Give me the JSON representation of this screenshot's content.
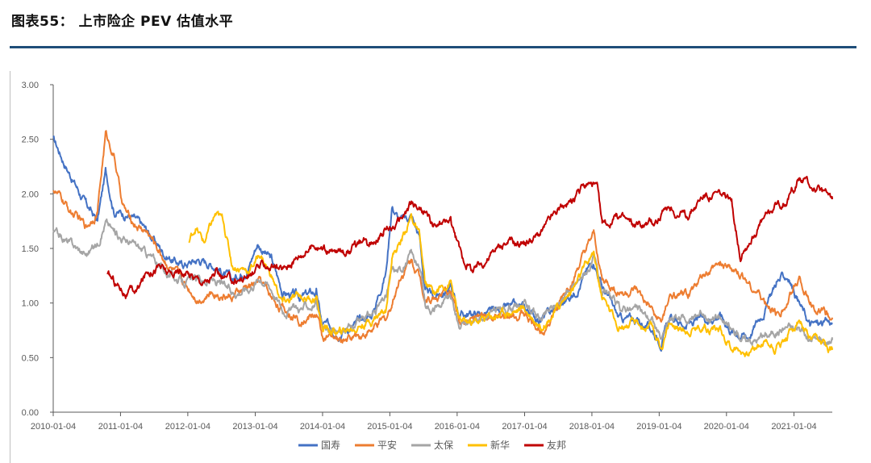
{
  "figure_title": "图表55： 上市险企 PEV 估值水平",
  "colors": {
    "rule": "#1f4e79",
    "国寿": "#4472c4",
    "平安": "#ed7d31",
    "太保": "#a5a5a5",
    "新华": "#ffc000",
    "友邦": "#c00000"
  },
  "chart_data": {
    "type": "line",
    "title": "",
    "xlabel": "",
    "ylabel": "",
    "ylim": [
      0,
      3
    ],
    "yticks": [
      "0.00",
      "0.50",
      "1.00",
      "1.50",
      "2.00",
      "2.50",
      "3.00"
    ],
    "xticks": [
      "2010-01-04",
      "2011-01-04",
      "2012-01-04",
      "2013-01-04",
      "2014-01-04",
      "2015-01-04",
      "2016-01-04",
      "2017-01-04",
      "2018-01-04",
      "2019-01-04",
      "2020-01-04",
      "2021-01-04"
    ],
    "xrange": [
      "2010-01-04",
      "2021-07-31"
    ],
    "grid": false,
    "legend": "bottom",
    "series": [
      {
        "name": "国寿",
        "points": [
          [
            "2010-01-04",
            2.5
          ],
          [
            "2010-04-01",
            2.2
          ],
          [
            "2010-07-01",
            1.9
          ],
          [
            "2010-09-01",
            1.75
          ],
          [
            "2010-10-15",
            2.2
          ],
          [
            "2010-12-01",
            1.85
          ],
          [
            "2011-03-01",
            1.8
          ],
          [
            "2011-06-01",
            1.65
          ],
          [
            "2011-09-01",
            1.45
          ],
          [
            "2011-12-01",
            1.35
          ],
          [
            "2012-03-01",
            1.4
          ],
          [
            "2012-06-01",
            1.35
          ],
          [
            "2012-09-01",
            1.2
          ],
          [
            "2012-12-01",
            1.35
          ],
          [
            "2013-01-15",
            1.55
          ],
          [
            "2013-04-01",
            1.4
          ],
          [
            "2013-06-01",
            1.1
          ],
          [
            "2013-09-01",
            1.05
          ],
          [
            "2013-12-01",
            1.1
          ],
          [
            "2014-01-01",
            0.8
          ],
          [
            "2014-04-01",
            0.75
          ],
          [
            "2014-07-01",
            0.8
          ],
          [
            "2014-10-01",
            0.9
          ],
          [
            "2014-12-15",
            1.3
          ],
          [
            "2015-01-15",
            1.9
          ],
          [
            "2015-03-01",
            1.75
          ],
          [
            "2015-05-01",
            1.8
          ],
          [
            "2015-06-15",
            1.6
          ],
          [
            "2015-07-15",
            1.1
          ],
          [
            "2015-09-01",
            1.05
          ],
          [
            "2015-12-01",
            1.15
          ],
          [
            "2016-01-15",
            0.9
          ],
          [
            "2016-04-01",
            0.9
          ],
          [
            "2016-07-01",
            0.9
          ],
          [
            "2016-10-01",
            0.95
          ],
          [
            "2017-01-01",
            0.95
          ],
          [
            "2017-04-01",
            0.85
          ],
          [
            "2017-07-01",
            0.95
          ],
          [
            "2017-10-01",
            1.1
          ],
          [
            "2018-01-15",
            1.4
          ],
          [
            "2018-03-01",
            1.15
          ],
          [
            "2018-06-01",
            0.85
          ],
          [
            "2018-09-01",
            0.85
          ],
          [
            "2018-12-01",
            0.75
          ],
          [
            "2019-01-15",
            0.65
          ],
          [
            "2019-03-01",
            0.85
          ],
          [
            "2019-06-01",
            0.8
          ],
          [
            "2019-09-01",
            0.85
          ],
          [
            "2019-12-01",
            0.9
          ],
          [
            "2020-02-01",
            0.75
          ],
          [
            "2020-05-01",
            0.7
          ],
          [
            "2020-08-01",
            0.95
          ],
          [
            "2020-10-01",
            1.2
          ],
          [
            "2020-12-01",
            1.25
          ],
          [
            "2021-02-01",
            1.0
          ],
          [
            "2021-04-01",
            0.8
          ],
          [
            "2021-07-31",
            0.82
          ]
        ]
      },
      {
        "name": "平安",
        "points": [
          [
            "2010-01-04",
            2.05
          ],
          [
            "2010-04-01",
            1.85
          ],
          [
            "2010-07-01",
            1.7
          ],
          [
            "2010-09-01",
            1.85
          ],
          [
            "2010-10-15",
            2.55
          ],
          [
            "2010-12-01",
            2.35
          ],
          [
            "2011-01-15",
            1.9
          ],
          [
            "2011-03-01",
            1.75
          ],
          [
            "2011-06-01",
            1.65
          ],
          [
            "2011-09-01",
            1.4
          ],
          [
            "2011-12-01",
            1.2
          ],
          [
            "2012-03-01",
            1.05
          ],
          [
            "2012-06-01",
            1.1
          ],
          [
            "2012-09-01",
            1.05
          ],
          [
            "2012-12-01",
            1.15
          ],
          [
            "2013-02-01",
            1.2
          ],
          [
            "2013-04-01",
            1.05
          ],
          [
            "2013-06-01",
            0.95
          ],
          [
            "2013-09-01",
            0.85
          ],
          [
            "2013-12-01",
            0.9
          ],
          [
            "2014-01-01",
            0.7
          ],
          [
            "2014-04-01",
            0.65
          ],
          [
            "2014-07-01",
            0.7
          ],
          [
            "2014-10-01",
            0.75
          ],
          [
            "2014-12-15",
            0.85
          ],
          [
            "2015-01-15",
            1.0
          ],
          [
            "2015-03-01",
            1.25
          ],
          [
            "2015-05-01",
            1.4
          ],
          [
            "2015-06-15",
            1.25
          ],
          [
            "2015-07-15",
            1.05
          ],
          [
            "2015-09-01",
            1.05
          ],
          [
            "2015-12-01",
            1.1
          ],
          [
            "2016-01-15",
            0.85
          ],
          [
            "2016-04-01",
            0.85
          ],
          [
            "2016-07-01",
            0.85
          ],
          [
            "2016-10-01",
            0.85
          ],
          [
            "2017-01-01",
            0.9
          ],
          [
            "2017-04-01",
            0.75
          ],
          [
            "2017-07-01",
            0.95
          ],
          [
            "2017-10-01",
            1.25
          ],
          [
            "2018-01-15",
            1.6
          ],
          [
            "2018-03-01",
            1.2
          ],
          [
            "2018-06-01",
            1.1
          ],
          [
            "2018-09-01",
            1.1
          ],
          [
            "2018-12-01",
            0.9
          ],
          [
            "2019-01-15",
            0.8
          ],
          [
            "2019-03-01",
            1.05
          ],
          [
            "2019-06-01",
            1.05
          ],
          [
            "2019-09-01",
            1.25
          ],
          [
            "2019-12-01",
            1.35
          ],
          [
            "2020-02-01",
            1.3
          ],
          [
            "2020-05-01",
            1.2
          ],
          [
            "2020-08-01",
            1.0
          ],
          [
            "2020-10-01",
            0.9
          ],
          [
            "2020-12-01",
            1.0
          ],
          [
            "2021-02-01",
            1.25
          ],
          [
            "2021-04-01",
            1.0
          ],
          [
            "2021-07-31",
            0.85
          ]
        ]
      },
      {
        "name": "太保",
        "points": [
          [
            "2010-01-04",
            1.65
          ],
          [
            "2010-04-01",
            1.55
          ],
          [
            "2010-07-01",
            1.45
          ],
          [
            "2010-09-01",
            1.55
          ],
          [
            "2010-10-15",
            1.75
          ],
          [
            "2010-12-01",
            1.65
          ],
          [
            "2011-03-01",
            1.55
          ],
          [
            "2011-06-01",
            1.45
          ],
          [
            "2011-09-01",
            1.3
          ],
          [
            "2011-12-01",
            1.2
          ],
          [
            "2012-03-01",
            1.2
          ],
          [
            "2012-06-01",
            1.2
          ],
          [
            "2012-09-01",
            1.1
          ],
          [
            "2012-12-01",
            1.15
          ],
          [
            "2013-02-01",
            1.25
          ],
          [
            "2013-04-01",
            1.15
          ],
          [
            "2013-06-01",
            0.95
          ],
          [
            "2013-09-01",
            0.95
          ],
          [
            "2013-12-01",
            1.0
          ],
          [
            "2014-01-01",
            0.75
          ],
          [
            "2014-04-01",
            0.72
          ],
          [
            "2014-07-01",
            0.8
          ],
          [
            "2014-10-01",
            0.9
          ],
          [
            "2014-12-15",
            1.05
          ],
          [
            "2015-01-15",
            1.3
          ],
          [
            "2015-03-01",
            1.3
          ],
          [
            "2015-05-01",
            1.45
          ],
          [
            "2015-06-15",
            1.3
          ],
          [
            "2015-07-15",
            1.0
          ],
          [
            "2015-09-01",
            0.95
          ],
          [
            "2015-12-01",
            1.05
          ],
          [
            "2016-01-15",
            0.8
          ],
          [
            "2016-04-01",
            0.85
          ],
          [
            "2016-07-01",
            0.9
          ],
          [
            "2016-10-01",
            0.95
          ],
          [
            "2017-01-01",
            1.0
          ],
          [
            "2017-04-01",
            0.85
          ],
          [
            "2017-07-01",
            1.0
          ],
          [
            "2017-10-01",
            1.15
          ],
          [
            "2018-01-15",
            1.4
          ],
          [
            "2018-03-01",
            1.1
          ],
          [
            "2018-06-01",
            0.95
          ],
          [
            "2018-09-01",
            0.95
          ],
          [
            "2018-12-01",
            0.85
          ],
          [
            "2019-01-15",
            0.65
          ],
          [
            "2019-03-01",
            0.85
          ],
          [
            "2019-06-01",
            0.85
          ],
          [
            "2019-09-01",
            0.9
          ],
          [
            "2019-12-01",
            0.85
          ],
          [
            "2020-02-01",
            0.75
          ],
          [
            "2020-05-01",
            0.65
          ],
          [
            "2020-08-01",
            0.7
          ],
          [
            "2020-10-01",
            0.75
          ],
          [
            "2020-12-01",
            0.8
          ],
          [
            "2021-02-01",
            0.75
          ],
          [
            "2021-04-01",
            0.65
          ],
          [
            "2021-07-31",
            0.66
          ]
        ]
      },
      {
        "name": "新华",
        "points": [
          [
            "2012-01-10",
            1.55
          ],
          [
            "2012-02-15",
            1.7
          ],
          [
            "2012-04-01",
            1.55
          ],
          [
            "2012-06-01",
            1.8
          ],
          [
            "2012-07-15",
            1.75
          ],
          [
            "2012-09-01",
            1.35
          ],
          [
            "2012-12-01",
            1.3
          ],
          [
            "2013-02-01",
            1.45
          ],
          [
            "2013-04-01",
            1.25
          ],
          [
            "2013-06-01",
            1.0
          ],
          [
            "2013-09-01",
            1.05
          ],
          [
            "2013-12-01",
            1.05
          ],
          [
            "2014-01-01",
            0.78
          ],
          [
            "2014-04-01",
            0.72
          ],
          [
            "2014-07-01",
            0.78
          ],
          [
            "2014-10-01",
            0.85
          ],
          [
            "2014-12-15",
            0.95
          ],
          [
            "2015-01-15",
            1.45
          ],
          [
            "2015-03-01",
            1.55
          ],
          [
            "2015-05-01",
            1.8
          ],
          [
            "2015-06-15",
            1.6
          ],
          [
            "2015-07-15",
            1.15
          ],
          [
            "2015-09-01",
            1.1
          ],
          [
            "2015-12-01",
            1.2
          ],
          [
            "2016-01-15",
            0.82
          ],
          [
            "2016-04-01",
            0.82
          ],
          [
            "2016-07-01",
            0.88
          ],
          [
            "2016-10-01",
            0.92
          ],
          [
            "2017-01-01",
            0.95
          ],
          [
            "2017-04-01",
            0.8
          ],
          [
            "2017-07-01",
            0.95
          ],
          [
            "2017-10-01",
            1.15
          ],
          [
            "2018-01-15",
            1.45
          ],
          [
            "2018-03-01",
            1.05
          ],
          [
            "2018-06-01",
            0.8
          ],
          [
            "2018-09-01",
            0.8
          ],
          [
            "2018-12-01",
            0.75
          ],
          [
            "2019-01-15",
            0.6
          ],
          [
            "2019-03-01",
            0.8
          ],
          [
            "2019-06-01",
            0.75
          ],
          [
            "2019-09-01",
            0.8
          ],
          [
            "2019-12-01",
            0.75
          ],
          [
            "2020-02-01",
            0.6
          ],
          [
            "2020-05-01",
            0.55
          ],
          [
            "2020-08-01",
            0.65
          ],
          [
            "2020-10-01",
            0.6
          ],
          [
            "2020-12-01",
            0.7
          ],
          [
            "2021-02-01",
            0.85
          ],
          [
            "2021-04-01",
            0.65
          ],
          [
            "2021-07-31",
            0.57
          ]
        ]
      },
      {
        "name": "友邦",
        "points": [
          [
            "2010-10-25",
            1.25
          ],
          [
            "2010-12-01",
            1.2
          ],
          [
            "2011-02-01",
            1.1
          ],
          [
            "2011-04-01",
            1.1
          ],
          [
            "2011-06-01",
            1.3
          ],
          [
            "2011-08-01",
            1.35
          ],
          [
            "2011-10-01",
            1.25
          ],
          [
            "2011-12-01",
            1.3
          ],
          [
            "2012-02-01",
            1.25
          ],
          [
            "2012-04-01",
            1.2
          ],
          [
            "2012-06-01",
            1.25
          ],
          [
            "2012-09-01",
            1.2
          ],
          [
            "2012-12-01",
            1.25
          ],
          [
            "2013-03-01",
            1.35
          ],
          [
            "2013-06-01",
            1.3
          ],
          [
            "2013-09-01",
            1.45
          ],
          [
            "2013-12-01",
            1.55
          ],
          [
            "2014-03-01",
            1.45
          ],
          [
            "2014-06-01",
            1.5
          ],
          [
            "2014-09-01",
            1.55
          ],
          [
            "2014-12-01",
            1.65
          ],
          [
            "2015-03-01",
            1.75
          ],
          [
            "2015-05-01",
            1.9
          ],
          [
            "2015-07-01",
            1.85
          ],
          [
            "2015-09-01",
            1.7
          ],
          [
            "2015-12-01",
            1.75
          ],
          [
            "2016-02-01",
            1.4
          ],
          [
            "2016-04-01",
            1.3
          ],
          [
            "2016-07-01",
            1.45
          ],
          [
            "2016-10-01",
            1.55
          ],
          [
            "2017-01-01",
            1.55
          ],
          [
            "2017-04-01",
            1.65
          ],
          [
            "2017-07-01",
            1.85
          ],
          [
            "2017-10-01",
            1.95
          ],
          [
            "2017-12-15",
            2.1
          ],
          [
            "2018-02-01",
            2.05
          ],
          [
            "2018-03-01",
            1.7
          ],
          [
            "2018-06-01",
            1.8
          ],
          [
            "2018-09-01",
            1.7
          ],
          [
            "2018-12-01",
            1.75
          ],
          [
            "2019-03-01",
            1.85
          ],
          [
            "2019-06-01",
            1.8
          ],
          [
            "2019-09-01",
            2.0
          ],
          [
            "2019-12-01",
            2.0
          ],
          [
            "2020-02-01",
            1.9
          ],
          [
            "2020-03-20",
            1.45
          ],
          [
            "2020-06-01",
            1.65
          ],
          [
            "2020-09-01",
            1.85
          ],
          [
            "2020-12-01",
            1.95
          ],
          [
            "2021-02-01",
            2.15
          ],
          [
            "2021-05-01",
            2.05
          ],
          [
            "2021-07-31",
            1.95
          ]
        ]
      }
    ]
  }
}
